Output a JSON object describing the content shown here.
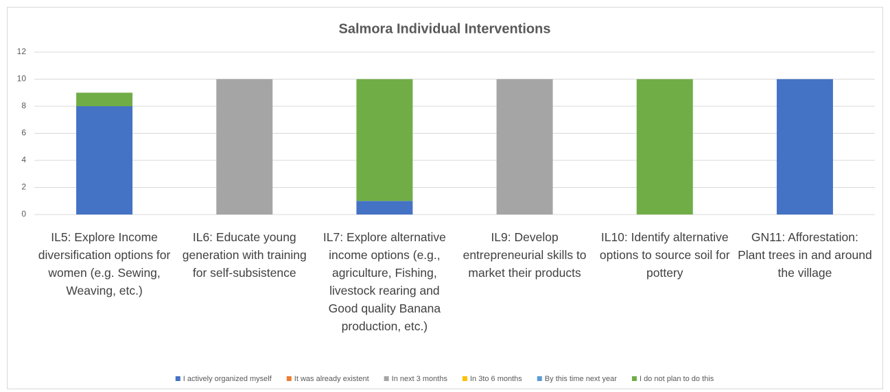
{
  "chart_data": {
    "type": "stacked_bar",
    "title": "Salmora Individual Interventions",
    "categories": [
      "IL5: Explore Income diversification options for women (e.g. Sewing, Weaving, etc.)",
      "IL6: Educate young generation with training for self-subsistence",
      "IL7: Explore alternative income options (e.g., agriculture, Fishing, livestock rearing and Good quality Banana production, etc.)",
      "IL9: Develop entrepreneurial skills to market their products",
      "IL10: Identify alternative options to source soil for pottery",
      "GN11: Afforestation: Plant trees in and around the village"
    ],
    "series": [
      {
        "name": "I actively organized myself",
        "color": "#4472c4",
        "values": [
          8,
          0,
          1,
          0,
          0,
          10
        ]
      },
      {
        "name": "It was already existent",
        "color": "#ed7d31",
        "values": [
          0,
          0,
          0,
          0,
          0,
          0
        ]
      },
      {
        "name": "In next 3 months",
        "color": "#a5a5a5",
        "values": [
          0,
          10,
          0,
          10,
          0,
          0
        ]
      },
      {
        "name": "In 3to 6 months",
        "color": "#ffc000",
        "values": [
          0,
          0,
          0,
          0,
          0,
          0
        ]
      },
      {
        "name": "By this time next year",
        "color": "#5b9bd5",
        "values": [
          0,
          0,
          0,
          0,
          0,
          0
        ]
      },
      {
        "name": "I do not plan to do this",
        "color": "#70ad47",
        "values": [
          1,
          0,
          9,
          0,
          10,
          0
        ]
      }
    ],
    "ylim": [
      0,
      12
    ],
    "yticks": [
      0,
      2,
      4,
      6,
      8,
      10,
      12
    ],
    "grid": true,
    "legend": "bottom"
  }
}
